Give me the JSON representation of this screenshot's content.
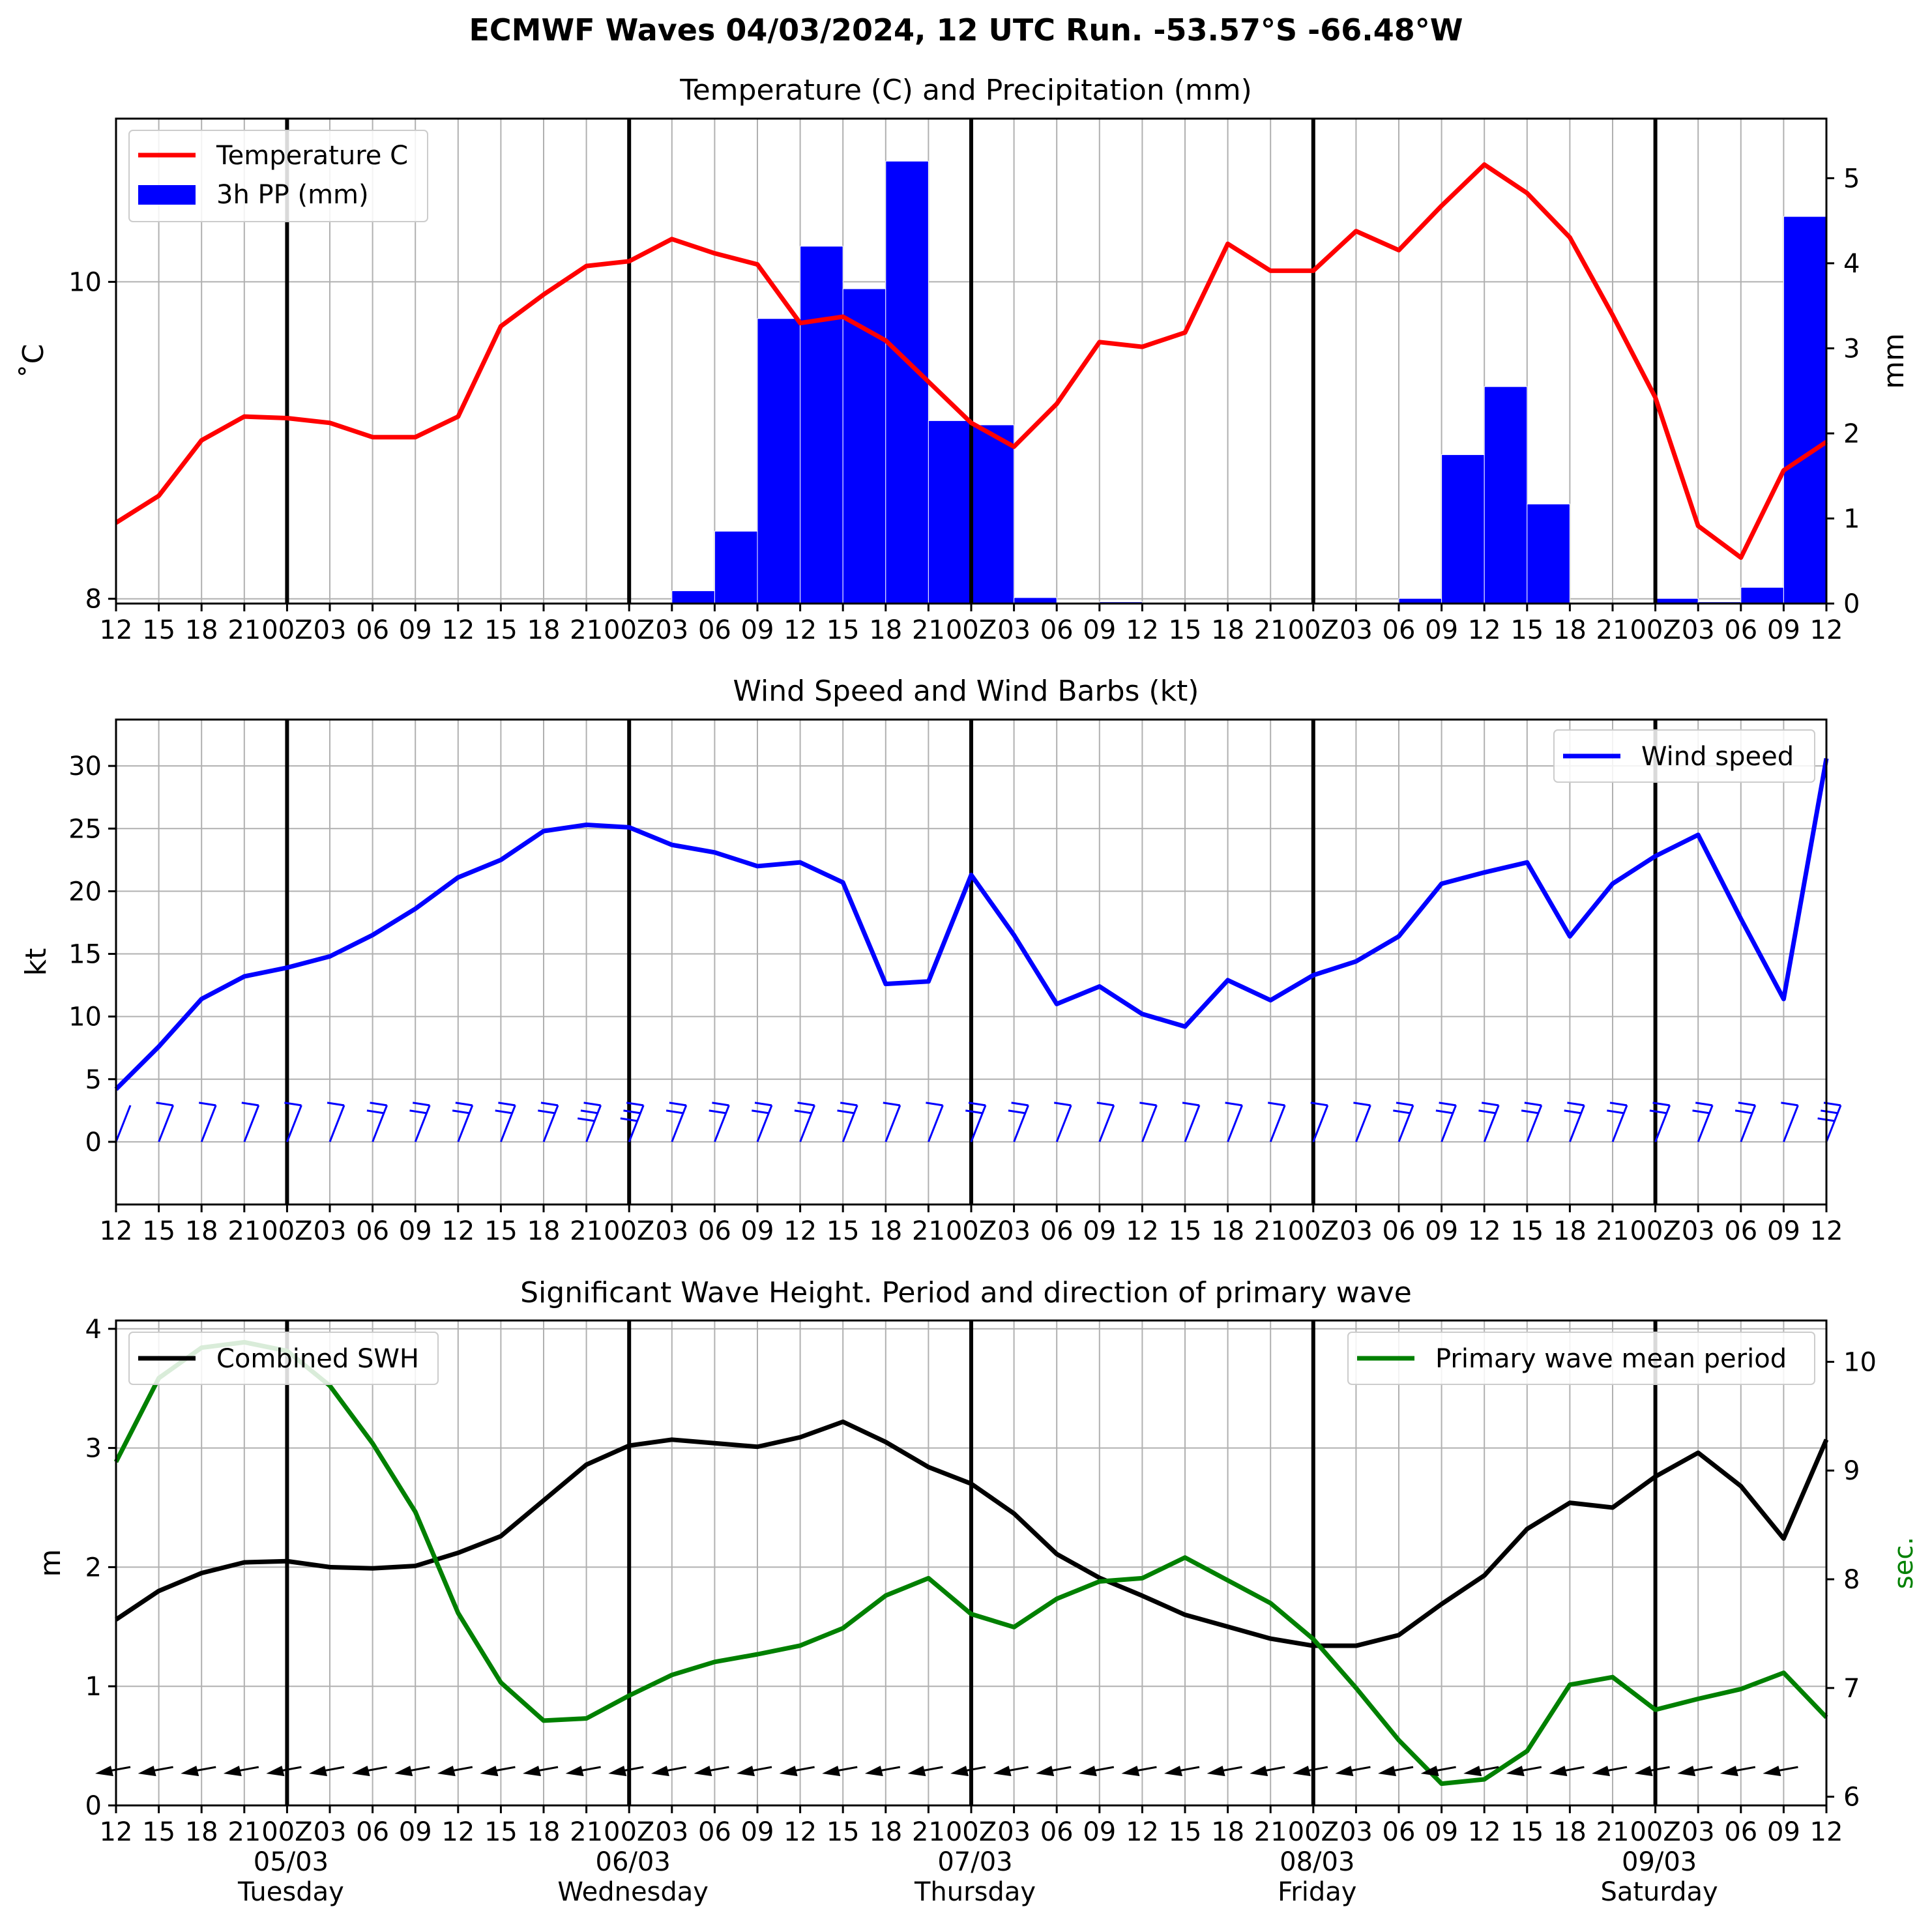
{
  "suptitle": "ECMWF Waves 04/03/2024, 12 UTC Run. -53.57°S -66.48°W",
  "x_tick_labels": [
    "12",
    "15",
    "18",
    "21",
    "00Z",
    "03",
    "06",
    "09",
    "12",
    "15",
    "18",
    "21",
    "00Z",
    "03",
    "06",
    "09",
    "12",
    "15",
    "18",
    "21",
    "00Z",
    "03",
    "06",
    "09",
    "12",
    "15",
    "18",
    "21",
    "00Z",
    "03",
    "06",
    "09",
    "12",
    "15",
    "18",
    "21",
    "00Z",
    "03",
    "06",
    "09",
    "12"
  ],
  "day_labels": [
    {
      "date": "05/03",
      "weekday": "Tuesday"
    },
    {
      "date": "06/03",
      "weekday": "Wednesday"
    },
    {
      "date": "07/03",
      "weekday": "Thursday"
    },
    {
      "date": "08/03",
      "weekday": "Friday"
    },
    {
      "date": "09/03",
      "weekday": "Saturday"
    }
  ],
  "colors": {
    "temperature": "#ff0000",
    "precipitation": "#0000ff",
    "wind": "#0000ff",
    "swh": "#000000",
    "period": "#008000",
    "grid": "#b0b0b0"
  },
  "chart_data": [
    {
      "type": "line",
      "title": "Temperature (C) and Precipitation (mm)",
      "ylabel": "$^\\circ$C",
      "ylabel_display": "˚C",
      "y2label": "mm",
      "ylim": [
        7.97,
        11.03
      ],
      "y2lim": [
        0,
        5.7
      ],
      "yticks": [
        8,
        10
      ],
      "y2ticks": [
        0,
        1,
        2,
        3,
        4,
        5
      ],
      "legend_position": "upper left",
      "series": [
        {
          "name": "Temperature C",
          "type": "line",
          "values": [
            8.48,
            8.65,
            9.0,
            9.15,
            9.14,
            9.11,
            9.02,
            9.02,
            9.15,
            9.72,
            9.92,
            10.1,
            10.13,
            10.27,
            10.18,
            10.11,
            9.74,
            9.78,
            9.63,
            9.37,
            9.11,
            8.96,
            9.23,
            9.62,
            9.59,
            9.68,
            10.24,
            10.07,
            10.07,
            10.32,
            10.2,
            10.48,
            10.74,
            10.56,
            10.28,
            9.79,
            9.27,
            8.46,
            8.26,
            8.81,
            8.99
          ]
        },
        {
          "name": "3h PP (mm)",
          "type": "bar",
          "values": [
            0,
            0,
            0,
            0,
            0,
            0,
            0,
            0,
            0,
            0,
            0,
            0,
            0,
            0.15,
            0.85,
            3.35,
            4.2,
            3.7,
            5.2,
            2.15,
            2.1,
            0.07,
            0,
            0.02,
            0,
            0,
            0,
            0,
            0,
            0,
            0.06,
            1.75,
            2.55,
            1.17,
            0,
            0,
            0.06,
            0.02,
            0.19,
            4.55
          ]
        }
      ]
    },
    {
      "type": "line",
      "title": "Wind Speed and Wind Barbs (kt)",
      "ylabel": "kt",
      "ylim": [
        -5,
        33.7
      ],
      "yticks": [
        0,
        5,
        10,
        15,
        20,
        25,
        30
      ],
      "legend_position": "upper right",
      "series": [
        {
          "name": "Wind speed",
          "values": [
            4.2,
            7.6,
            11.4,
            13.2,
            13.9,
            14.8,
            16.5,
            18.6,
            21.1,
            22.5,
            24.8,
            25.3,
            25.1,
            23.7,
            23.1,
            22.0,
            22.3,
            20.7,
            12.6,
            12.8,
            21.3,
            16.5,
            11.0,
            12.4,
            10.2,
            9.2,
            12.9,
            11.3,
            13.3,
            14.4,
            16.4,
            20.6,
            21.5,
            22.3,
            16.4,
            20.6,
            22.8,
            24.5,
            17.8,
            11.4,
            30.6
          ]
        }
      ]
    },
    {
      "type": "line",
      "title": "Significant Wave Height. Period and direction of primary wave",
      "ylabel": "m",
      "y2label": "sec.",
      "ylim": [
        0,
        4.07
      ],
      "y2lim": [
        5.92,
        10.38
      ],
      "yticks": [
        0,
        1,
        2,
        3,
        4
      ],
      "y2ticks": [
        6,
        7,
        8,
        9,
        10
      ],
      "series": [
        {
          "name": "Combined SWH",
          "legend_position": "upper left",
          "values": [
            1.56,
            1.8,
            1.95,
            2.04,
            2.05,
            2.0,
            1.99,
            2.01,
            2.12,
            2.26,
            2.56,
            2.86,
            3.02,
            3.07,
            3.04,
            3.01,
            3.09,
            3.22,
            3.05,
            2.84,
            2.7,
            2.45,
            2.11,
            1.91,
            1.76,
            1.6,
            1.5,
            1.4,
            1.34,
            1.34,
            1.43,
            1.69,
            1.93,
            2.32,
            2.54,
            2.5,
            2.76,
            2.96,
            2.68,
            2.24,
            3.07
          ]
        },
        {
          "name": "Primary wave mean period",
          "axis": "right",
          "legend_position": "upper right",
          "values": [
            9.08,
            9.85,
            10.13,
            10.18,
            10.1,
            9.78,
            9.25,
            8.62,
            7.69,
            7.05,
            6.7,
            6.72,
            6.93,
            7.12,
            7.24,
            7.31,
            7.39,
            7.55,
            7.85,
            8.01,
            7.68,
            7.56,
            7.82,
            7.98,
            8.01,
            8.2,
            7.99,
            7.78,
            7.45,
            7.0,
            6.52,
            6.12,
            6.16,
            6.42,
            7.03,
            7.1,
            6.8,
            6.9,
            6.99,
            7.14,
            6.73
          ]
        }
      ]
    }
  ]
}
